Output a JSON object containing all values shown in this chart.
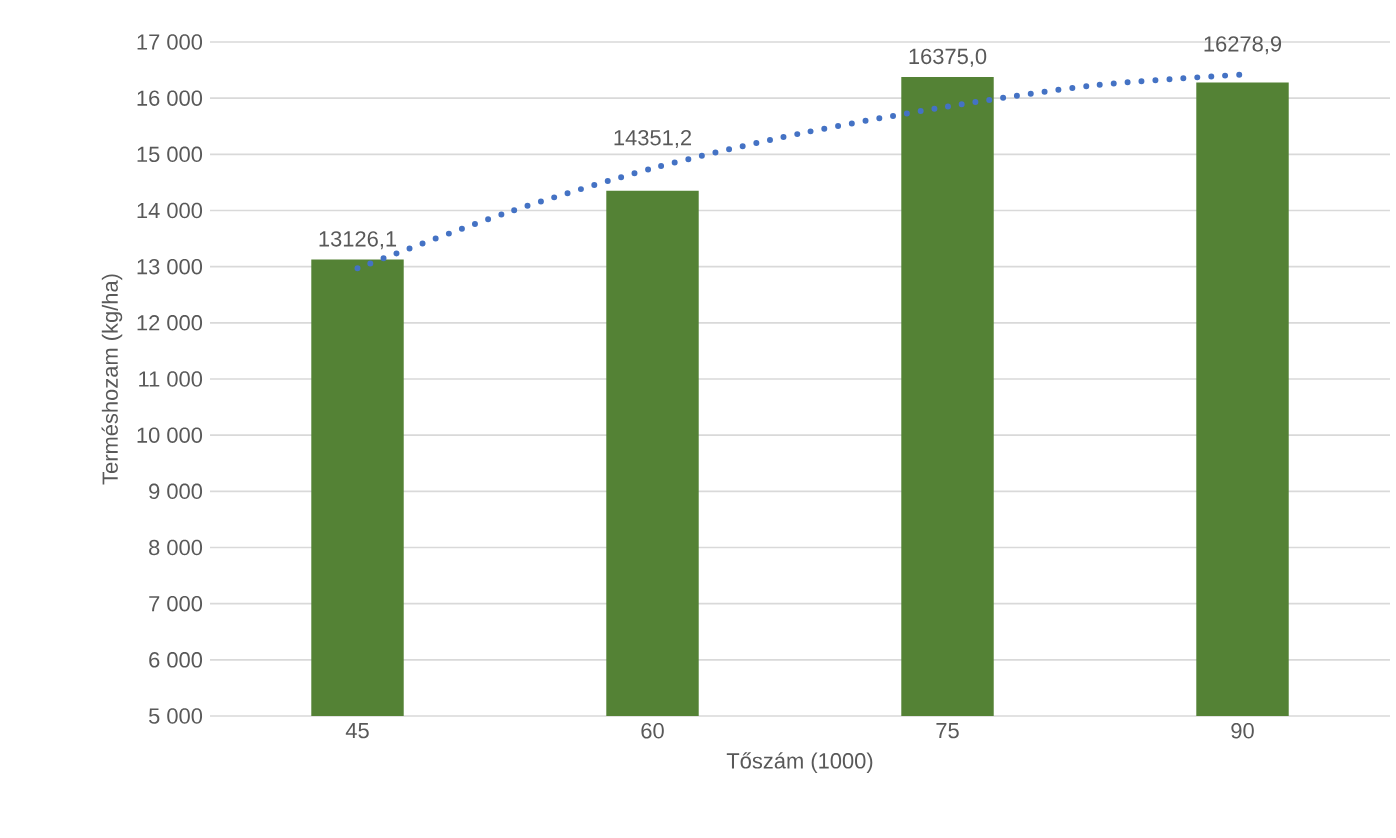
{
  "chart_data": {
    "type": "bar",
    "xlabel": "Tőszám (1000)",
    "ylabel": "Terméshozam (kg/ha)",
    "x": [
      45,
      60,
      75,
      90
    ],
    "xlim": [
      37.5,
      97.5
    ],
    "xticks": [
      45,
      60,
      75,
      90
    ],
    "ylim": [
      5000,
      17000
    ],
    "yticks": [
      {
        "value": 5000,
        "label": "5 000"
      },
      {
        "value": 6000,
        "label": "6 000"
      },
      {
        "value": 7000,
        "label": "7 000"
      },
      {
        "value": 8000,
        "label": "8 000"
      },
      {
        "value": 9000,
        "label": "9 000"
      },
      {
        "value": 10000,
        "label": "10 000"
      },
      {
        "value": 11000,
        "label": "11 000"
      },
      {
        "value": 12000,
        "label": "12 000"
      },
      {
        "value": 13000,
        "label": "13 000"
      },
      {
        "value": 14000,
        "label": "14 000"
      },
      {
        "value": 15000,
        "label": "15 000"
      },
      {
        "value": 16000,
        "label": "16 000"
      },
      {
        "value": 17000,
        "label": "17 000"
      }
    ],
    "grid": "y",
    "series": [
      {
        "color": "#548235",
        "values": [
          13126.1,
          14351.2,
          16375.0,
          16278.9
        ],
        "value_labels": [
          "13126,1",
          "14351,2",
          "16375,0",
          "16278,9"
        ]
      },
      {
        "type": "line",
        "color": "#4472c4",
        "line_style": "dotted",
        "marker": "none",
        "x": [
          45,
          52.5,
          60,
          67.5,
          75,
          82.5,
          90
        ],
        "values": [
          12970,
          13950,
          14750,
          15370,
          15850,
          16230,
          16420
        ]
      }
    ]
  }
}
